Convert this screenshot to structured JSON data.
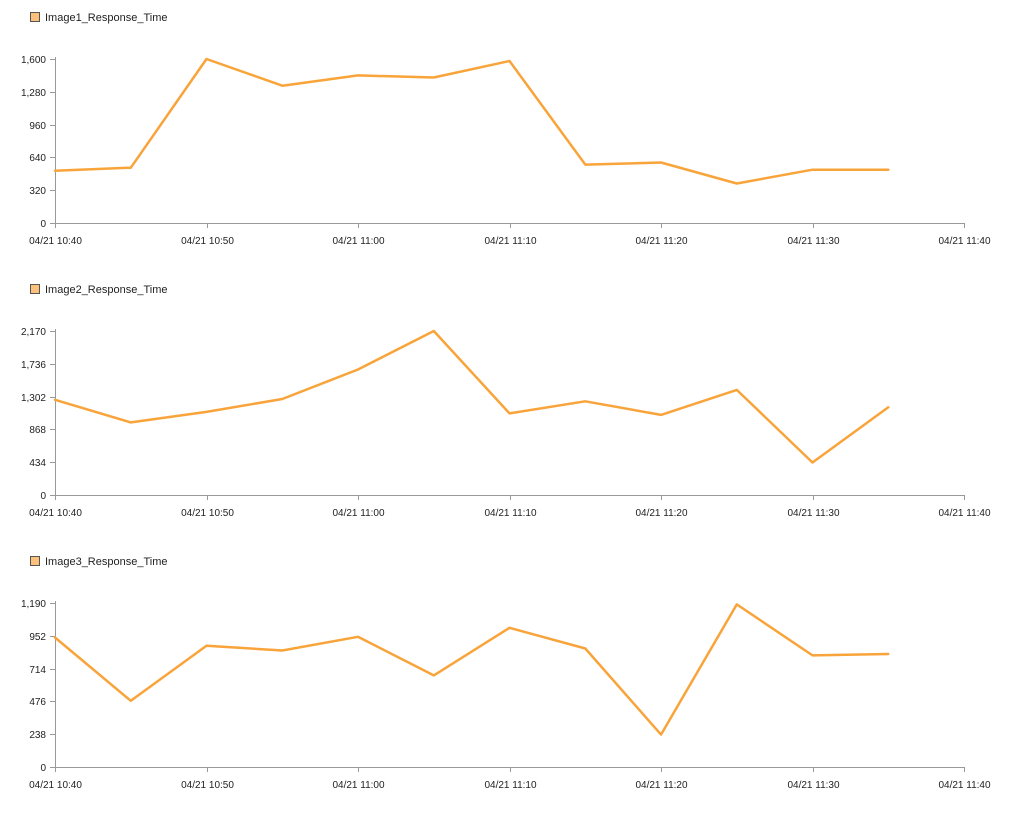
{
  "chart_data": [
    {
      "type": "line",
      "legend": "Image1_Response_Time",
      "color": "#f9a43a",
      "swatch_fill": "#fbc07a",
      "swatch_stroke": "#555555",
      "x": [
        "10:40",
        "10:45",
        "10:50",
        "10:55",
        "11:00",
        "11:05",
        "11:10",
        "11:15",
        "11:20",
        "11:25",
        "11:30",
        "11:35"
      ],
      "values": [
        510,
        540,
        1600,
        1340,
        1440,
        1420,
        1580,
        570,
        590,
        385,
        520,
        520
      ],
      "ylim": [
        0,
        1600
      ],
      "yticks": [
        0,
        320,
        640,
        960,
        1280,
        1600
      ],
      "ytick_labels": [
        "0",
        "320",
        "640",
        "960",
        "1,280",
        "1,600"
      ],
      "xticks": [
        "04/21 10:40",
        "04/21 10:50",
        "04/21 11:00",
        "04/21 11:10",
        "04/21 11:20",
        "04/21 11:30",
        "04/21 11:40"
      ],
      "grid": false,
      "legend_position": "top-left"
    },
    {
      "type": "line",
      "legend": "Image2_Response_Time",
      "color": "#f9a43a",
      "swatch_fill": "#fbc07a",
      "swatch_stroke": "#555555",
      "x": [
        "10:40",
        "10:45",
        "10:50",
        "10:55",
        "11:00",
        "11:05",
        "11:10",
        "11:15",
        "11:20",
        "11:25",
        "11:30",
        "11:35"
      ],
      "values": [
        1260,
        960,
        1100,
        1270,
        1660,
        2170,
        1080,
        1240,
        1060,
        1390,
        430,
        1160
      ],
      "ylim": [
        0,
        2170
      ],
      "yticks": [
        0,
        434,
        868,
        1302,
        1736,
        2170
      ],
      "ytick_labels": [
        "0",
        "434",
        "868",
        "1,302",
        "1,736",
        "2,170"
      ],
      "xticks": [
        "04/21 10:40",
        "04/21 10:50",
        "04/21 11:00",
        "04/21 11:10",
        "04/21 11:20",
        "04/21 11:30",
        "04/21 11:40"
      ],
      "grid": false,
      "legend_position": "top-left"
    },
    {
      "type": "line",
      "legend": "Image3_Response_Time",
      "color": "#f9a43a",
      "swatch_fill": "#fbc07a",
      "swatch_stroke": "#555555",
      "x": [
        "10:40",
        "10:45",
        "10:50",
        "10:55",
        "11:00",
        "11:05",
        "11:10",
        "11:15",
        "11:20",
        "11:25",
        "11:30",
        "11:35"
      ],
      "values": [
        940,
        480,
        880,
        845,
        945,
        665,
        1010,
        860,
        235,
        1180,
        810,
        820
      ],
      "ylim": [
        0,
        1190
      ],
      "yticks": [
        0,
        238,
        476,
        714,
        952,
        1190
      ],
      "ytick_labels": [
        "0",
        "238",
        "476",
        "714",
        "952",
        "1,190"
      ],
      "xticks": [
        "04/21 10:40",
        "04/21 10:50",
        "04/21 11:00",
        "04/21 11:10",
        "04/21 11:20",
        "04/21 11:30",
        "04/21 11:40"
      ],
      "grid": false,
      "legend_position": "top-left"
    }
  ]
}
